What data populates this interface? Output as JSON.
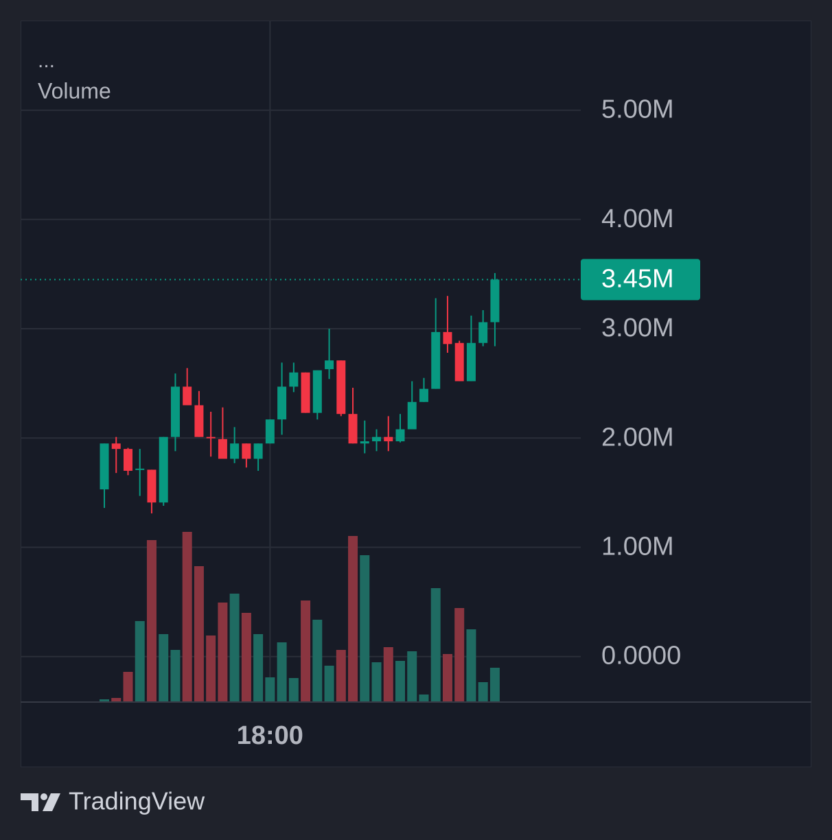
{
  "chart_data": {
    "type": "candlestick",
    "indicator_menu": "...",
    "indicator_label": "Volume",
    "brand": "TradingView",
    "categories": [
      null,
      null,
      null,
      null,
      null,
      null,
      null,
      null,
      null,
      null,
      null,
      null,
      null,
      null,
      "18:00",
      null,
      null,
      null,
      null,
      null,
      null,
      null,
      null,
      null,
      null,
      null,
      null,
      null,
      null,
      null,
      null,
      null,
      null,
      null
    ],
    "open": [
      1.53,
      1.95,
      1.9,
      1.71,
      1.71,
      1.41,
      2.01,
      2.47,
      2.3,
      2.01,
      1.99,
      1.81,
      1.95,
      1.81,
      1.95,
      2.17,
      2.47,
      2.6,
      2.23,
      2.63,
      2.71,
      2.22,
      1.95,
      1.97,
      2.01,
      1.97,
      2.08,
      2.33,
      2.45,
      2.97,
      2.87,
      2.52,
      2.87,
      3.06
    ],
    "high": [
      1.95,
      2.01,
      1.91,
      1.9,
      1.71,
      2.01,
      2.59,
      2.64,
      2.43,
      2.24,
      2.28,
      2.1,
      1.95,
      1.95,
      2.17,
      2.69,
      2.69,
      2.6,
      2.62,
      3.0,
      2.71,
      2.46,
      2.16,
      2.08,
      2.2,
      2.22,
      2.52,
      2.55,
      3.28,
      3.3,
      2.89,
      3.12,
      3.17,
      3.51
    ],
    "low": [
      1.36,
      1.68,
      1.66,
      1.47,
      1.31,
      1.38,
      1.88,
      2.3,
      2.01,
      1.83,
      1.81,
      1.77,
      1.73,
      1.7,
      1.95,
      2.03,
      2.42,
      2.23,
      2.17,
      2.54,
      2.2,
      1.95,
      1.86,
      1.88,
      1.88,
      1.96,
      2.08,
      2.33,
      2.45,
      2.78,
      2.52,
      2.52,
      2.84,
      2.84
    ],
    "close": [
      1.95,
      1.9,
      1.7,
      1.72,
      1.41,
      2.01,
      2.47,
      2.3,
      2.01,
      2.0,
      1.81,
      1.95,
      1.81,
      1.95,
      2.17,
      2.47,
      2.6,
      2.23,
      2.62,
      2.71,
      2.22,
      1.95,
      1.97,
      2.01,
      1.97,
      2.08,
      2.33,
      2.45,
      2.97,
      2.86,
      2.52,
      2.87,
      3.06,
      3.45
    ],
    "volume": [
      3,
      5,
      43,
      117,
      235,
      98,
      75,
      247,
      197,
      96,
      144,
      157,
      129,
      98,
      35,
      86,
      34,
      147,
      119,
      52,
      75,
      241,
      213,
      57,
      79,
      59,
      73,
      10,
      165,
      69,
      136,
      105,
      28,
      49
    ],
    "ylim": [
      -0.41,
      5.82
    ],
    "yticks": [
      {
        "value": 0,
        "label": "0.0000"
      },
      {
        "value": 1,
        "label": "1.00M"
      },
      {
        "value": 2,
        "label": "2.00M"
      },
      {
        "value": 3,
        "label": "3.00M"
      },
      {
        "value": 4,
        "label": "4.00M"
      },
      {
        "value": 5,
        "label": "5.00M"
      }
    ],
    "last_price_label": "3.45M",
    "grid": true,
    "up_color": "#089981",
    "down_color": "#f23645",
    "volume_up_color": "#1f6b62",
    "volume_down_color": "#8a3540"
  }
}
